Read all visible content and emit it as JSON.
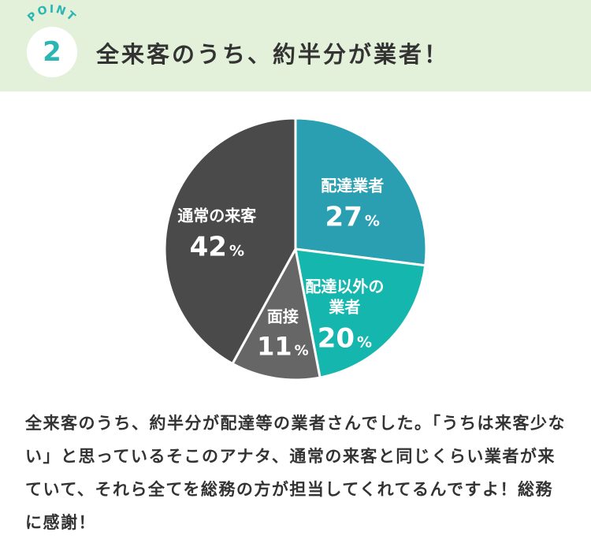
{
  "header": {
    "point_label": "POINT",
    "number": "2",
    "title": "全来客のうち、約半分が業者！"
  },
  "colors": {
    "header_bg": "#e3f1da",
    "accent": "#2bb6b3",
    "delivery": "#2a9fb2",
    "other_business": "#15b6ad",
    "interview": "#666666",
    "regular": "#4a4a4a"
  },
  "chart_data": {
    "type": "pie",
    "unit": "%",
    "slices": [
      {
        "label": "配達業者",
        "value": 27,
        "color": "#2a9fb2"
      },
      {
        "label": "配達以外の業者",
        "label_lines": [
          "配達以外の",
          "業者"
        ],
        "value": 20,
        "color": "#15b6ad"
      },
      {
        "label": "面接",
        "value": 11,
        "color": "#666666"
      },
      {
        "label": "通常の来客",
        "value": 42,
        "color": "#4a4a4a"
      }
    ]
  },
  "description": "全来客のうち、約半分が配達等の業者さんでした。「うちは来客少ない」と思っているそこのアナタ、通常の来客と同じくらい業者が来ていて、それら全てを総務の方が担当してくれてるんですよ！総務に感謝！"
}
